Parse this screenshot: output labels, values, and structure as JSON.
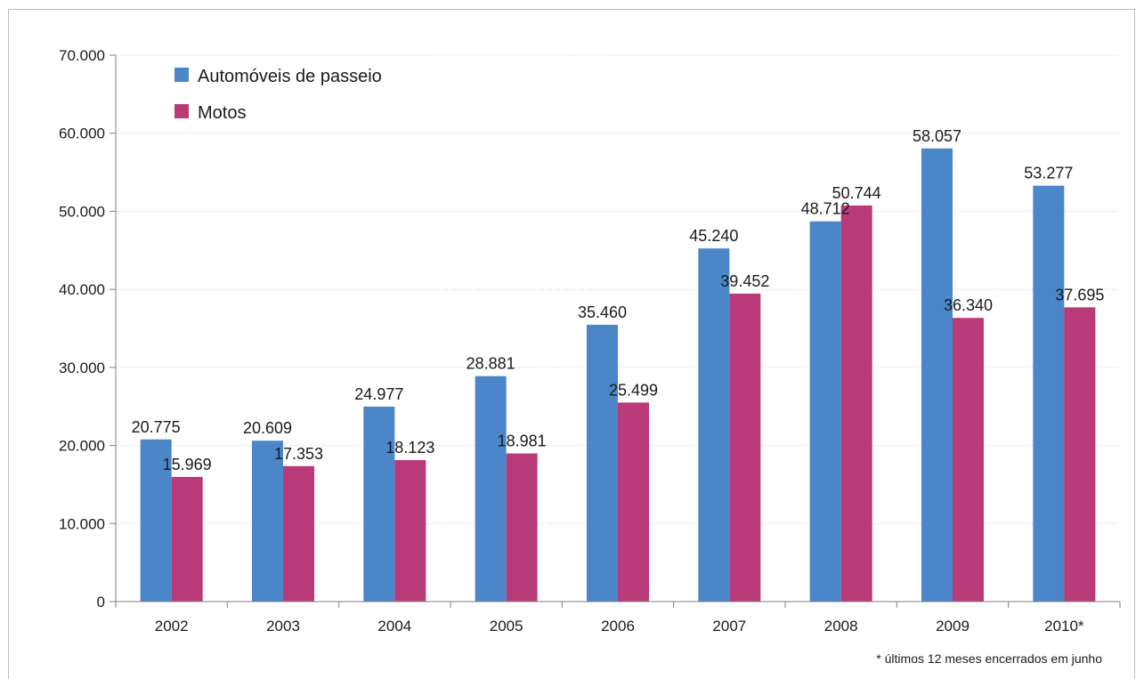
{
  "chart_data": {
    "type": "bar",
    "categories": [
      "2002",
      "2003",
      "2004",
      "2005",
      "2006",
      "2007",
      "2008",
      "2009",
      "2010*"
    ],
    "series": [
      {
        "name": "Automóveis de passeio",
        "color": "#4a86c8",
        "values": [
          20775,
          20609,
          24977,
          28881,
          35460,
          45240,
          48712,
          58057,
          53277
        ],
        "labels": [
          "20.775",
          "20.609",
          "24.977",
          "28.881",
          "35.460",
          "45.240",
          "48.712",
          "58.057",
          "53.277"
        ]
      },
      {
        "name": "Motos",
        "color": "#b83a78",
        "values": [
          15969,
          17353,
          18123,
          18981,
          25499,
          39452,
          50744,
          36340,
          37695
        ],
        "labels": [
          "15.969",
          "17.353",
          "18.123",
          "18.981",
          "25.499",
          "39.452",
          "50.744",
          "36.340",
          "37.695"
        ]
      }
    ],
    "ylim": [
      0,
      70000
    ],
    "yticks": [
      0,
      10000,
      20000,
      30000,
      40000,
      50000,
      60000,
      70000
    ],
    "ytick_labels": [
      "0",
      "10.000",
      "20.000",
      "30.000",
      "40.000",
      "50.000",
      "60.000",
      "70.000"
    ],
    "grid": true,
    "legend_position": "top-left",
    "footnote": "* últimos 12 meses encerrados em junho",
    "title": "",
    "xlabel": "",
    "ylabel": ""
  }
}
